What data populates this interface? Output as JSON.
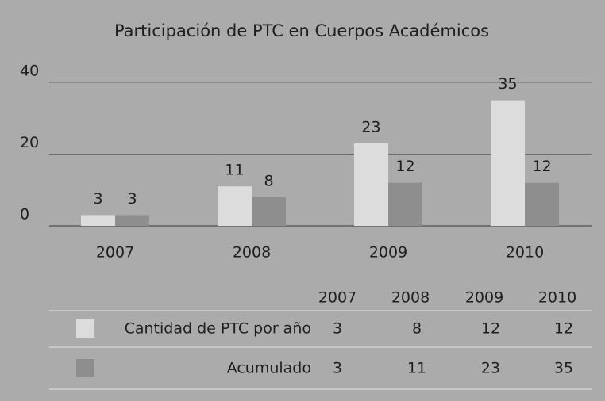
{
  "chart_data": {
    "type": "bar",
    "title": "Participación de PTC en Cuerpos Académicos",
    "categories": [
      "2007",
      "2008",
      "2009",
      "2010"
    ],
    "series": [
      {
        "name": "Cantidad de PTC por año",
        "color": "#dcdcdc",
        "values": [
          3,
          11,
          23,
          35
        ]
      },
      {
        "name": "Acumulado",
        "color": "#8e8e8e",
        "values": [
          3,
          8,
          12,
          12
        ]
      }
    ],
    "ylim": [
      0,
      40
    ],
    "yticks": [
      0,
      20,
      40
    ],
    "grid": true,
    "data_table": {
      "rows": [
        {
          "values": [
            3,
            8,
            12,
            12
          ]
        },
        {
          "values": [
            3,
            11,
            23,
            35
          ]
        }
      ]
    }
  }
}
